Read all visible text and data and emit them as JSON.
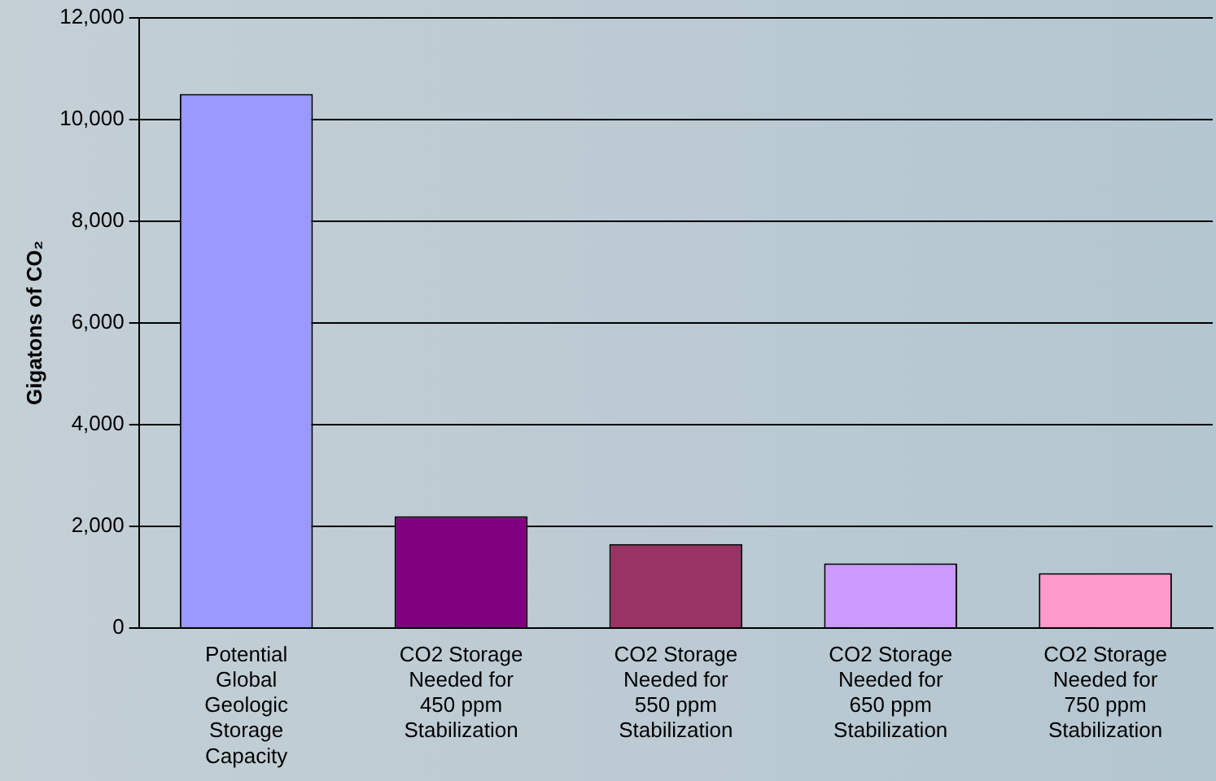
{
  "chart_data": {
    "type": "bar",
    "ylabel": "Gigatons of CO₂",
    "categories": [
      "Potential Global Geologic Storage Capacity",
      "CO2 Storage Needed for 450 ppm Stabilization",
      "CO2 Storage Needed for 550 ppm Stabilization",
      "CO2 Storage Needed for 650 ppm Stabilization",
      "CO2 Storage Needed for 750 ppm Stabilization"
    ],
    "values": [
      10500,
      2200,
      1650,
      1270,
      1080
    ],
    "colors": [
      "#9999ff",
      "#800080",
      "#993366",
      "#cc99ff",
      "#ff99cc"
    ],
    "ylim": [
      0,
      12000
    ],
    "yticks": [
      0,
      {
        "value": 2000,
        "label": "2,000"
      },
      {
        "value": 4000,
        "label": "4,000"
      },
      {
        "value": 6000,
        "label": "6,000"
      },
      {
        "value": 8000,
        "label": "8,000"
      },
      {
        "value": 10000,
        "label": "10,000"
      },
      {
        "value": 12000,
        "label": "12,000"
      }
    ],
    "grid": "y"
  }
}
